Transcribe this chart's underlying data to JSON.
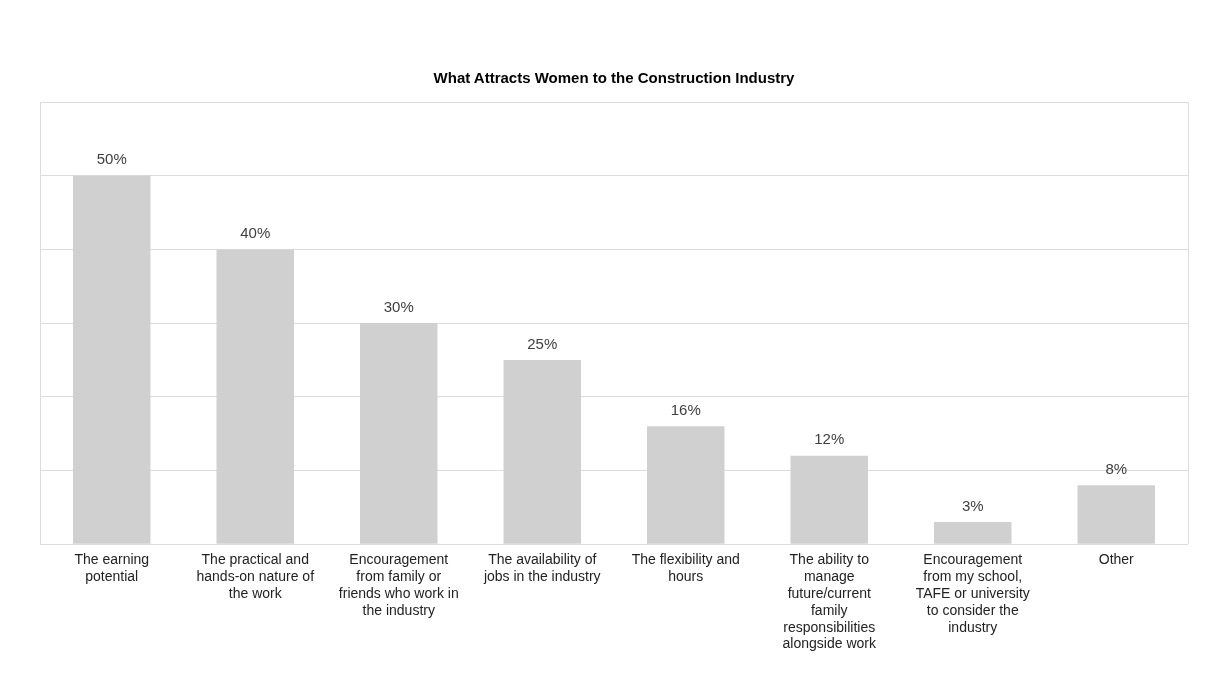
{
  "chart_data": {
    "type": "bar",
    "title": "What Attracts Women to the Construction Industry",
    "categories": [
      "The earning potential",
      "The practical and hands-on nature of the work",
      "Encouragement from family or friends who work in the industry",
      "The availability of jobs in the industry",
      "The flexibility and hours",
      "The ability to manage future/current family responsibilities alongside work",
      "Encouragement from my school, TAFE or university to consider the industry",
      "Other"
    ],
    "values": [
      50,
      40,
      30,
      25,
      16,
      12,
      3,
      8
    ],
    "value_labels": [
      "50%",
      "40%",
      "30%",
      "25%",
      "16%",
      "12%",
      "3%",
      "8%"
    ],
    "color": "#d0d0d0",
    "ylim": [
      0,
      60
    ],
    "yticks": [
      {
        "value": 0,
        "label": null
      },
      {
        "value": 10,
        "label": null
      },
      {
        "value": 20,
        "label": null
      },
      {
        "value": 30,
        "label": null
      },
      {
        "value": 40,
        "label": null
      },
      {
        "value": 50,
        "label": null
      },
      {
        "value": 60,
        "label": null
      }
    ],
    "tick_labels": "x",
    "grid": "y",
    "legend": false
  }
}
